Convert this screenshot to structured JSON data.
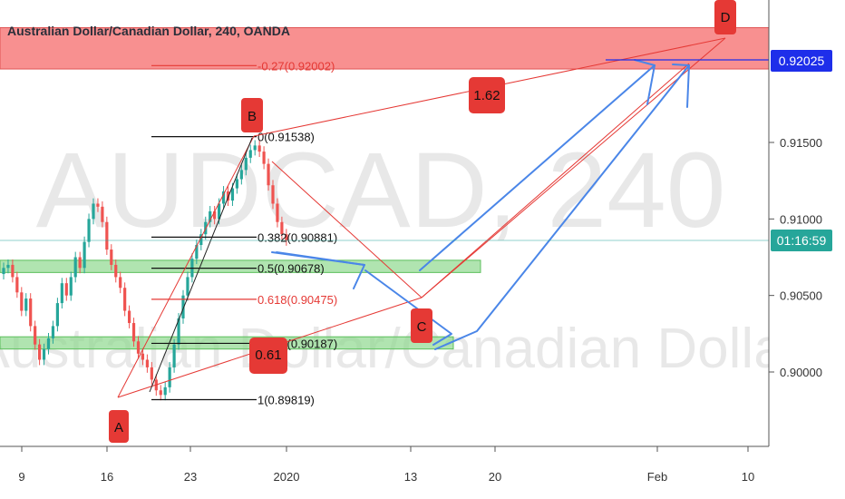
{
  "header": {
    "title": "Australian Dollar/Canadian Dollar, 240, OANDA"
  },
  "watermark": {
    "symbol": "AUDCAD, 240",
    "description": "Australian Dollar/Canadian Dollar"
  },
  "colors": {
    "bull": "#26a69a",
    "bear": "#ef5350",
    "zone_red": "#f77c7c",
    "zone_green": "#8fd98f",
    "blue_arrow": "#4a86e8",
    "red_line": "#e53935",
    "label_bg": "#e53935",
    "price_tag_blue": "#1e2eea",
    "price_tag_green": "#26a69a"
  },
  "chart_data": {
    "type": "candlestick",
    "title": "Australian Dollar/Canadian Dollar, 240, OANDA",
    "ylim": [
      0.897,
      0.923
    ],
    "x_tick_labels": [
      "9",
      "16",
      "23",
      "2020",
      "13",
      "20",
      "Feb",
      "10"
    ],
    "y_tick_labels": [
      "0.90000",
      "0.90500",
      "0.91000",
      "0.91500"
    ],
    "y_ticks": [
      0.9,
      0.905,
      0.91,
      0.915
    ],
    "price_tags": [
      {
        "label": "0.92025",
        "value": 0.92025,
        "kind": "level"
      },
      {
        "label": "01:16:59",
        "value": 0.90835,
        "kind": "countdown"
      }
    ],
    "close_series_approx": [
      0.9068,
      0.907,
      0.9062,
      0.9052,
      0.904,
      0.9048,
      0.903,
      0.9018,
      0.9008,
      0.9015,
      0.9022,
      0.903,
      0.9045,
      0.9058,
      0.905,
      0.9062,
      0.9075,
      0.9068,
      0.9085,
      0.91,
      0.911,
      0.9108,
      0.9098,
      0.908,
      0.907,
      0.9062,
      0.9055,
      0.904,
      0.9032,
      0.902,
      0.9012,
      0.9008,
      0.9003,
      0.8995,
      0.8988,
      0.8985,
      0.899,
      0.9003,
      0.9018,
      0.9035,
      0.905,
      0.9062,
      0.9074,
      0.9083,
      0.909,
      0.9098,
      0.9105,
      0.91,
      0.911,
      0.9118,
      0.9112,
      0.912,
      0.9126,
      0.9132,
      0.914,
      0.9145,
      0.9148,
      0.9144,
      0.9136,
      0.9122,
      0.911,
      0.9098,
      0.909,
      0.9086
    ],
    "fib_levels": [
      {
        "label": "-0.27(0.92002)",
        "value": 0.92002,
        "color": "red"
      },
      {
        "label": "0(0.91538)",
        "value": 0.91538,
        "color": "black"
      },
      {
        "label": "0.382(0.90881)",
        "value": 0.90881,
        "color": "black"
      },
      {
        "label": "0.5(0.90678)",
        "value": 0.90678,
        "color": "black"
      },
      {
        "label": "0.618(0.90475)",
        "value": 0.90475,
        "color": "red"
      },
      {
        "label": "0.786(0.90187)",
        "value": 0.90187,
        "color": "black"
      },
      {
        "label": "1(0.89819)",
        "value": 0.89819,
        "color": "black"
      }
    ],
    "zones": [
      {
        "name": "resistance",
        "from": 0.9198,
        "to": 0.9225,
        "color": "red"
      },
      {
        "name": "support-upper",
        "from": 0.9065,
        "to": 0.9073,
        "color": "green"
      },
      {
        "name": "support-lower",
        "from": 0.9015,
        "to": 0.9023,
        "color": "green"
      }
    ],
    "pattern_points": [
      {
        "label": "A",
        "value": 0.898
      },
      {
        "label": "B",
        "value": 0.91538
      },
      {
        "label": "C",
        "value": 0.905
      },
      {
        "label": "D",
        "value": 0.9213
      }
    ],
    "ratio_labels": [
      "1.62",
      "0.61"
    ]
  }
}
